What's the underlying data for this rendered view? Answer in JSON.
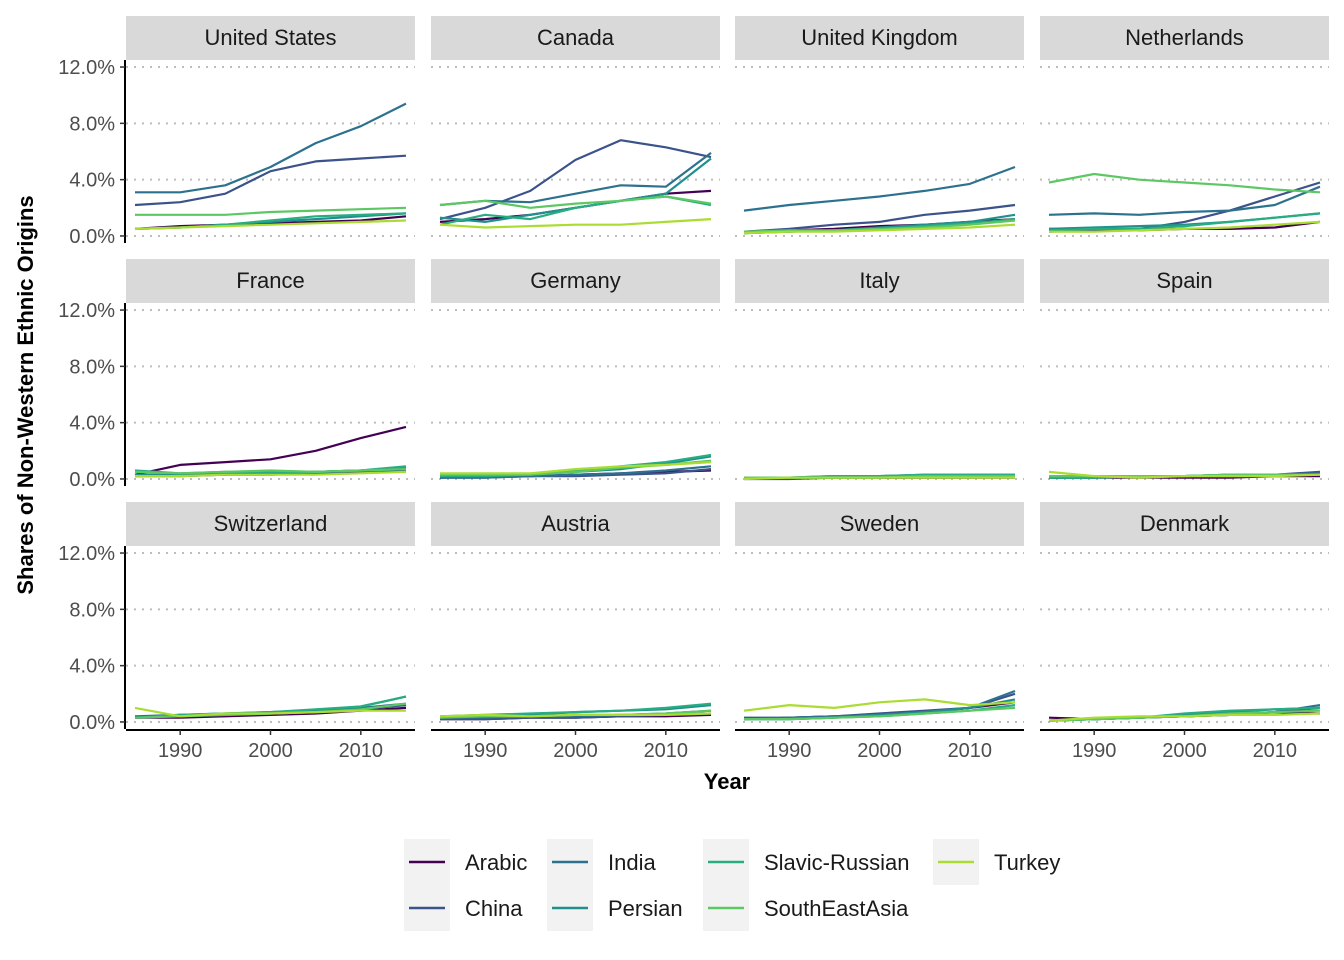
{
  "chart_data": {
    "type": "line",
    "layout": "faceted-grid-3x4",
    "xlabel": "Year",
    "ylabel": "Shares of Non-Western Ethnic Origins",
    "xlim": [
      1984,
      2016
    ],
    "ylim": [
      -0.5,
      12.5
    ],
    "x_ticks": [
      1990,
      2000,
      2010
    ],
    "y_ticks": [
      0,
      4,
      8,
      12
    ],
    "y_tick_labels": [
      "0.0%",
      "4.0%",
      "8.0%",
      "12.0%"
    ],
    "grid": "dotted horizontal major",
    "legend_position": "bottom",
    "series_meta": [
      {
        "name": "Arabic",
        "color": "#440154"
      },
      {
        "name": "China",
        "color": "#3B528B"
      },
      {
        "name": "India",
        "color": "#2C728E"
      },
      {
        "name": "Persian",
        "color": "#21908C"
      },
      {
        "name": "Slavic-Russian",
        "color": "#27AD81"
      },
      {
        "name": "SouthEastAsia",
        "color": "#5DC863"
      },
      {
        "name": "Turkey",
        "color": "#AADC32"
      }
    ],
    "x_anchor_years": [
      1985,
      1990,
      1995,
      2000,
      2005,
      2010,
      2015
    ],
    "panels": [
      {
        "name": "United States",
        "series": {
          "Arabic": [
            0.5,
            0.7,
            0.8,
            0.9,
            1.0,
            1.1,
            1.4
          ],
          "China": [
            2.2,
            2.4,
            3.0,
            4.6,
            5.3,
            5.5,
            5.7
          ],
          "India": [
            3.1,
            3.1,
            3.6,
            4.9,
            6.6,
            7.8,
            9.4
          ],
          "Persian": [
            0.5,
            0.6,
            0.8,
            1.0,
            1.2,
            1.4,
            1.6
          ],
          "Slavic-Russian": [
            0.5,
            0.6,
            0.8,
            1.1,
            1.4,
            1.5,
            1.6
          ],
          "SouthEastAsia": [
            1.5,
            1.5,
            1.5,
            1.7,
            1.8,
            1.9,
            2.0
          ],
          "Turkey": [
            0.5,
            0.6,
            0.7,
            0.8,
            0.9,
            1.0,
            1.1
          ]
        }
      },
      {
        "name": "Canada",
        "series": {
          "Arabic": [
            1.0,
            1.2,
            1.5,
            2.0,
            2.5,
            3.0,
            3.2
          ],
          "China": [
            1.2,
            2.0,
            3.2,
            5.4,
            6.8,
            6.3,
            5.6
          ],
          "India": [
            2.2,
            2.5,
            2.4,
            3.0,
            3.6,
            3.5,
            5.9
          ],
          "Persian": [
            1.3,
            1.0,
            1.5,
            2.0,
            2.5,
            3.0,
            5.5
          ],
          "Slavic-Russian": [
            0.8,
            1.5,
            1.2,
            2.0,
            2.5,
            2.8,
            2.2
          ],
          "SouthEastAsia": [
            2.2,
            2.5,
            2.0,
            2.3,
            2.5,
            2.8,
            2.3
          ],
          "Turkey": [
            0.8,
            0.6,
            0.7,
            0.8,
            0.8,
            1.0,
            1.2
          ]
        }
      },
      {
        "name": "United Kingdom",
        "series": {
          "Arabic": [
            0.3,
            0.4,
            0.5,
            0.7,
            0.8,
            1.0,
            1.2
          ],
          "China": [
            0.3,
            0.5,
            0.8,
            1.0,
            1.5,
            1.8,
            2.2
          ],
          "India": [
            1.8,
            2.2,
            2.5,
            2.8,
            3.2,
            3.7,
            4.9
          ],
          "Persian": [
            0.2,
            0.3,
            0.4,
            0.6,
            0.8,
            1.0,
            1.5
          ],
          "Slavic-Russian": [
            0.2,
            0.3,
            0.4,
            0.5,
            0.7,
            0.9,
            1.2
          ],
          "SouthEastAsia": [
            0.3,
            0.4,
            0.4,
            0.5,
            0.6,
            0.8,
            1.1
          ],
          "Turkey": [
            0.2,
            0.3,
            0.3,
            0.4,
            0.5,
            0.6,
            0.8
          ]
        }
      },
      {
        "name": "Netherlands",
        "series": {
          "Arabic": [
            0.5,
            0.4,
            0.4,
            0.5,
            0.5,
            0.6,
            1.0
          ],
          "China": [
            0.3,
            0.4,
            0.5,
            1.0,
            1.8,
            2.8,
            3.8
          ],
          "India": [
            1.5,
            1.6,
            1.5,
            1.7,
            1.8,
            2.2,
            3.5
          ],
          "Persian": [
            0.5,
            0.6,
            0.7,
            0.8,
            1.0,
            1.3,
            1.6
          ],
          "Slavic-Russian": [
            0.4,
            0.5,
            0.5,
            0.7,
            1.0,
            1.3,
            1.6
          ],
          "SouthEastAsia": [
            3.8,
            4.4,
            4.0,
            3.8,
            3.6,
            3.3,
            3.1
          ],
          "Turkey": [
            0.3,
            0.3,
            0.4,
            0.5,
            0.6,
            0.8,
            1.0
          ]
        }
      },
      {
        "name": "France",
        "series": {
          "Arabic": [
            0.3,
            1.0,
            1.2,
            1.4,
            2.0,
            2.9,
            3.7
          ],
          "China": [
            0.2,
            0.2,
            0.3,
            0.3,
            0.4,
            0.5,
            0.6
          ],
          "India": [
            0.2,
            0.3,
            0.3,
            0.4,
            0.5,
            0.6,
            0.7
          ],
          "Persian": [
            0.3,
            0.3,
            0.4,
            0.4,
            0.5,
            0.6,
            0.8
          ],
          "Slavic-Russian": [
            0.6,
            0.4,
            0.5,
            0.5,
            0.5,
            0.6,
            0.9
          ],
          "SouthEastAsia": [
            0.5,
            0.4,
            0.5,
            0.6,
            0.5,
            0.6,
            0.7
          ],
          "Turkey": [
            0.2,
            0.2,
            0.3,
            0.3,
            0.3,
            0.4,
            0.5
          ]
        }
      },
      {
        "name": "Germany",
        "series": {
          "Arabic": [
            0.1,
            0.2,
            0.2,
            0.3,
            0.4,
            0.5,
            0.6
          ],
          "China": [
            0.1,
            0.1,
            0.2,
            0.2,
            0.3,
            0.4,
            0.7
          ],
          "India": [
            0.1,
            0.1,
            0.2,
            0.3,
            0.4,
            0.6,
            0.9
          ],
          "Persian": [
            0.2,
            0.2,
            0.3,
            0.5,
            0.7,
            1.1,
            1.6
          ],
          "Slavic-Russian": [
            0.2,
            0.2,
            0.3,
            0.6,
            0.9,
            1.2,
            1.7
          ],
          "SouthEastAsia": [
            0.3,
            0.3,
            0.3,
            0.5,
            0.8,
            1.0,
            1.3
          ],
          "Turkey": [
            0.4,
            0.4,
            0.4,
            0.7,
            0.9,
            1.0,
            1.2
          ]
        }
      },
      {
        "name": "Italy",
        "series": {
          "Arabic": [
            0.1,
            0.1,
            0.1,
            0.1,
            0.1,
            0.1,
            0.1
          ],
          "China": [
            0.0,
            0.0,
            0.1,
            0.1,
            0.1,
            0.1,
            0.2
          ],
          "India": [
            0.1,
            0.1,
            0.1,
            0.2,
            0.2,
            0.2,
            0.2
          ],
          "Persian": [
            0.1,
            0.1,
            0.2,
            0.2,
            0.3,
            0.3,
            0.3
          ],
          "Slavic-Russian": [
            0.1,
            0.1,
            0.2,
            0.2,
            0.3,
            0.3,
            0.3
          ],
          "SouthEastAsia": [
            0.1,
            0.1,
            0.1,
            0.1,
            0.2,
            0.2,
            0.2
          ],
          "Turkey": [
            0.0,
            0.1,
            0.1,
            0.1,
            0.1,
            0.1,
            0.1
          ]
        }
      },
      {
        "name": "Spain",
        "series": {
          "Arabic": [
            0.1,
            0.1,
            0.1,
            0.1,
            0.1,
            0.2,
            0.2
          ],
          "China": [
            0.1,
            0.1,
            0.2,
            0.2,
            0.2,
            0.3,
            0.5
          ],
          "India": [
            0.1,
            0.2,
            0.2,
            0.2,
            0.3,
            0.3,
            0.4
          ],
          "Persian": [
            0.1,
            0.1,
            0.2,
            0.2,
            0.3,
            0.3,
            0.3
          ],
          "Slavic-Russian": [
            0.1,
            0.1,
            0.2,
            0.2,
            0.3,
            0.3,
            0.3
          ],
          "SouthEastAsia": [
            0.2,
            0.2,
            0.2,
            0.2,
            0.3,
            0.3,
            0.3
          ],
          "Turkey": [
            0.5,
            0.2,
            0.1,
            0.2,
            0.2,
            0.2,
            0.3
          ]
        }
      },
      {
        "name": "Switzerland",
        "series": {
          "Arabic": [
            0.3,
            0.3,
            0.4,
            0.5,
            0.6,
            0.8,
            1.0
          ],
          "China": [
            0.3,
            0.4,
            0.5,
            0.6,
            0.7,
            0.9,
            1.2
          ],
          "India": [
            0.4,
            0.5,
            0.5,
            0.7,
            0.8,
            1.0,
            1.3
          ],
          "Persian": [
            0.3,
            0.5,
            0.6,
            0.7,
            0.8,
            1.1,
            1.8
          ],
          "Slavic-Russian": [
            0.3,
            0.5,
            0.6,
            0.7,
            0.9,
            1.1,
            1.8
          ],
          "SouthEastAsia": [
            0.3,
            0.4,
            0.5,
            0.6,
            0.7,
            0.9,
            1.3
          ],
          "Turkey": [
            1.0,
            0.4,
            0.6,
            0.6,
            0.7,
            0.8,
            0.8
          ]
        }
      },
      {
        "name": "Austria",
        "series": {
          "Arabic": [
            0.2,
            0.2,
            0.3,
            0.3,
            0.4,
            0.4,
            0.5
          ],
          "China": [
            0.2,
            0.2,
            0.3,
            0.3,
            0.4,
            0.5,
            0.6
          ],
          "India": [
            0.3,
            0.3,
            0.4,
            0.4,
            0.5,
            0.6,
            0.8
          ],
          "Persian": [
            0.3,
            0.4,
            0.5,
            0.7,
            0.8,
            0.9,
            1.2
          ],
          "Slavic-Russian": [
            0.4,
            0.5,
            0.6,
            0.7,
            0.8,
            1.0,
            1.3
          ],
          "SouthEastAsia": [
            0.3,
            0.4,
            0.4,
            0.5,
            0.5,
            0.6,
            0.8
          ],
          "Turkey": [
            0.4,
            0.5,
            0.4,
            0.5,
            0.5,
            0.5,
            0.6
          ]
        }
      },
      {
        "name": "Sweden",
        "series": {
          "Arabic": [
            0.2,
            0.3,
            0.4,
            0.5,
            0.7,
            1.0,
            1.4
          ],
          "China": [
            0.3,
            0.3,
            0.4,
            0.6,
            0.8,
            1.0,
            2.0
          ],
          "India": [
            0.2,
            0.3,
            0.4,
            0.5,
            0.7,
            1.0,
            2.2
          ],
          "Persian": [
            0.2,
            0.2,
            0.3,
            0.5,
            0.7,
            1.0,
            1.6
          ],
          "Slavic-Russian": [
            0.2,
            0.2,
            0.3,
            0.4,
            0.6,
            0.8,
            1.2
          ],
          "SouthEastAsia": [
            0.2,
            0.2,
            0.3,
            0.4,
            0.6,
            0.8,
            1.0
          ],
          "Turkey": [
            0.8,
            1.2,
            1.0,
            1.4,
            1.6,
            1.2,
            1.4
          ]
        }
      },
      {
        "name": "Denmark",
        "series": {
          "Arabic": [
            0.3,
            0.2,
            0.3,
            0.4,
            0.5,
            0.7,
            0.6
          ],
          "China": [
            0.1,
            0.2,
            0.3,
            0.4,
            0.5,
            0.7,
            1.0
          ],
          "India": [
            0.1,
            0.2,
            0.3,
            0.4,
            0.5,
            0.7,
            1.2
          ],
          "Persian": [
            0.1,
            0.2,
            0.3,
            0.5,
            0.7,
            0.9,
            1.0
          ],
          "Slavic-Russian": [
            0.1,
            0.2,
            0.3,
            0.6,
            0.8,
            0.9,
            1.0
          ],
          "SouthEastAsia": [
            0.1,
            0.2,
            0.3,
            0.4,
            0.6,
            0.7,
            0.8
          ],
          "Turkey": [
            0.1,
            0.3,
            0.4,
            0.4,
            0.5,
            0.5,
            0.6
          ]
        }
      }
    ]
  }
}
